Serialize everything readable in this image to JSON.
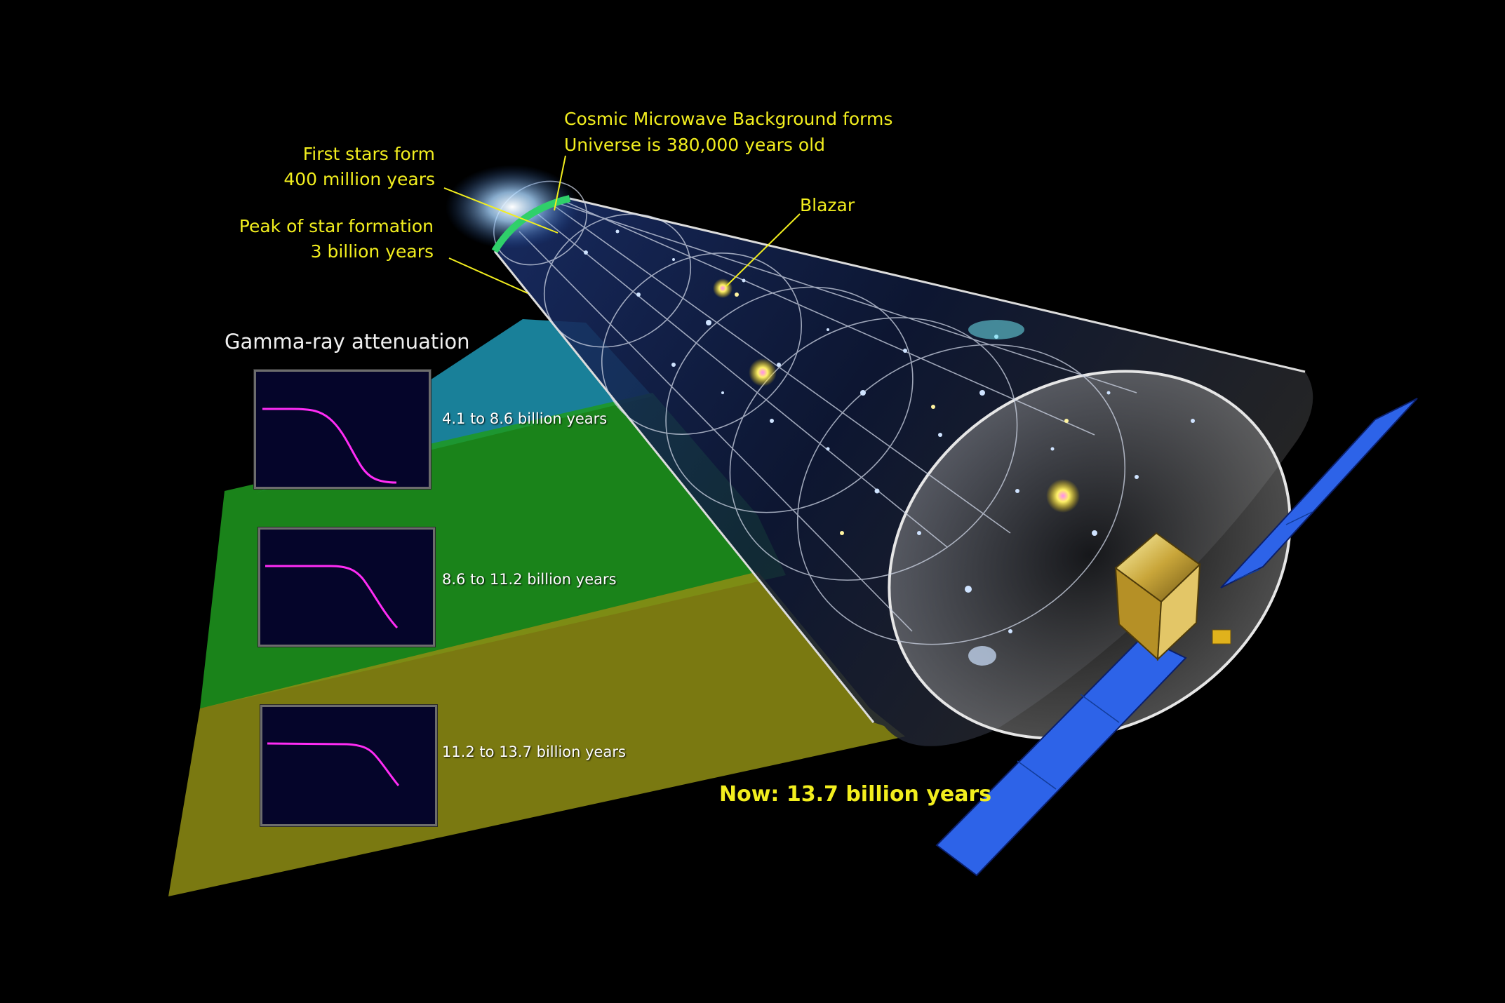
{
  "title": "Gamma-ray attenuation",
  "labels": {
    "cmb_line1": "Cosmic Microwave Background forms",
    "cmb_line2": "Universe is 380,000 years old",
    "first_stars_line1": "First stars form",
    "first_stars_line2": "400 million years",
    "peak_line1": "Peak of star formation",
    "peak_line2": "3 billion years",
    "blazar": "Blazar",
    "now": "Now: 13.7 billion years"
  },
  "panels": [
    {
      "era": "4.1 to 8.6 billion years",
      "band_color": "#1d97b4"
    },
    {
      "era": "8.6 to 11.2 billion years",
      "band_color": "#1e9a1e"
    },
    {
      "era": "11.2 to 13.7 billion years",
      "band_color": "#8f8e14"
    }
  ],
  "colors": {
    "label": "#f2ee1e",
    "curve": "#ff2cf5",
    "panel_bg": "#05052a",
    "solar_panel": "#2d63e8"
  }
}
